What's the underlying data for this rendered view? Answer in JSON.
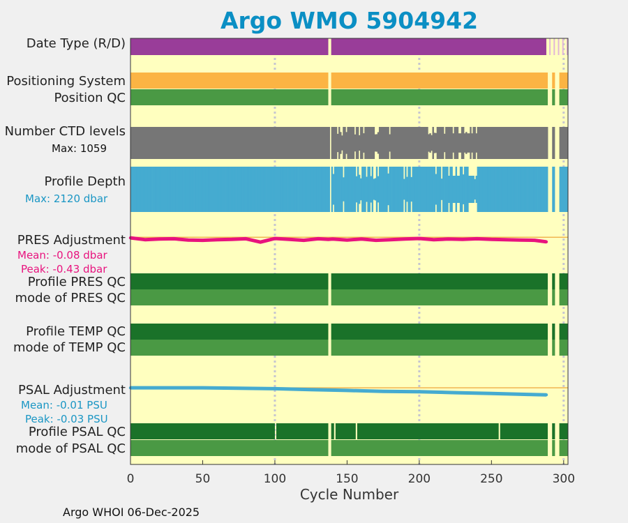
{
  "chart_data": {
    "type": "status-timeline",
    "title": "Argo WMO 5904942",
    "xlabel": "Cycle Number",
    "xlim": [
      0,
      303
    ],
    "xticks": [
      0,
      50,
      100,
      150,
      200,
      250,
      300
    ],
    "grid_x": [
      100,
      200,
      300
    ],
    "gaps": [
      138,
      290,
      295,
      300
    ],
    "rows": [
      {
        "label": "Date Type (R/D)",
        "kind": "segments",
        "color": "#993d99",
        "segments": [
          [
            0,
            137
          ],
          [
            139,
            288
          ]
        ],
        "faint_after": true
      },
      {
        "label": "Positioning System",
        "kind": "segments",
        "color": "#fbb444",
        "segments": [
          [
            0,
            137
          ],
          [
            139,
            289
          ],
          [
            292,
            294
          ],
          [
            297,
            303
          ]
        ]
      },
      {
        "label": "Position QC",
        "kind": "segments",
        "color": "#4a9944",
        "segments": [
          [
            0,
            137
          ],
          [
            139,
            289
          ],
          [
            292,
            294
          ],
          [
            297,
            303
          ]
        ]
      },
      {
        "label": "Number CTD levels",
        "sub": "Max: 1059",
        "sub_color": "#111111",
        "kind": "levels",
        "color": "#767676",
        "max": 1059
      },
      {
        "label": "Profile Depth",
        "sub": "Max: 2120 dbar",
        "sub_color": "#1a96c4",
        "kind": "levels",
        "color": "#45abd0",
        "max": 2120
      },
      {
        "label": "PRES Adjustment",
        "kind": "line",
        "color": "#e8137e",
        "stats": [
          {
            "text": "Mean: -0.08 dbar",
            "color": "#e8137e"
          },
          {
            "text": "Peak: -0.43 dbar",
            "color": "#e8137e"
          }
        ],
        "cycles": [
          0,
          10,
          20,
          30,
          40,
          50,
          60,
          70,
          80,
          90,
          100,
          110,
          120,
          130,
          137,
          140,
          150,
          160,
          170,
          180,
          190,
          200,
          210,
          220,
          230,
          240,
          250,
          260,
          270,
          280,
          288
        ],
        "values": [
          -0.02,
          -0.08,
          -0.06,
          -0.05,
          -0.09,
          -0.1,
          -0.08,
          -0.07,
          -0.05,
          -0.16,
          -0.04,
          -0.07,
          -0.1,
          -0.05,
          -0.07,
          -0.06,
          -0.09,
          -0.06,
          -0.1,
          -0.08,
          -0.06,
          -0.04,
          -0.08,
          -0.06,
          -0.07,
          -0.05,
          -0.07,
          -0.08,
          -0.09,
          -0.1,
          -0.15
        ],
        "ylim": [
          -0.45,
          0.05
        ]
      },
      {
        "label": "Profile PRES QC",
        "kind": "segments",
        "color": "#1a7229",
        "segments": [
          [
            0,
            137
          ],
          [
            139,
            289
          ],
          [
            292,
            294
          ],
          [
            297,
            303
          ]
        ]
      },
      {
        "label": "mode of PRES QC",
        "kind": "segments",
        "color": "#4a9944",
        "segments": [
          [
            0,
            137
          ],
          [
            139,
            289
          ],
          [
            292,
            294
          ],
          [
            297,
            303
          ]
        ]
      },
      {
        "label": "Profile TEMP QC",
        "kind": "segments",
        "color": "#1a7229",
        "segments": [
          [
            0,
            137
          ],
          [
            139,
            289
          ],
          [
            292,
            294
          ],
          [
            297,
            303
          ]
        ]
      },
      {
        "label": "mode of TEMP QC",
        "kind": "segments",
        "color": "#4a9944",
        "segments": [
          [
            0,
            137
          ],
          [
            139,
            289
          ],
          [
            292,
            294
          ],
          [
            297,
            303
          ]
        ]
      },
      {
        "label": "PSAL Adjustment",
        "kind": "line",
        "color": "#45abd0",
        "stats": [
          {
            "text": "Mean: -0.01 PSU",
            "color": "#1a96c4"
          },
          {
            "text": "Peak: -0.03 PSU",
            "color": "#1a96c4"
          }
        ],
        "cycles": [
          0,
          25,
          50,
          75,
          100,
          125,
          150,
          175,
          200,
          225,
          250,
          275,
          288
        ],
        "values": [
          0.0,
          0.0,
          0.0,
          -0.001,
          -0.002,
          -0.004,
          -0.006,
          -0.008,
          -0.009,
          -0.011,
          -0.013,
          -0.015,
          -0.016
        ],
        "ylim": [
          -0.03,
          0.005
        ]
      },
      {
        "label": "Profile PSAL QC",
        "kind": "segments",
        "color": "#1a7229",
        "segments": [
          [
            0,
            100
          ],
          [
            101,
            137
          ],
          [
            139,
            141
          ],
          [
            142,
            156
          ],
          [
            157,
            255
          ],
          [
            256,
            289
          ],
          [
            292,
            294
          ],
          [
            297,
            303
          ]
        ]
      },
      {
        "label": "mode of PSAL QC",
        "kind": "segments",
        "color": "#4a9944",
        "segments": [
          [
            0,
            137
          ],
          [
            139,
            289
          ],
          [
            292,
            294
          ],
          [
            297,
            303
          ]
        ]
      }
    ]
  },
  "footer": "Argo WHOI 06-Dec-2025"
}
